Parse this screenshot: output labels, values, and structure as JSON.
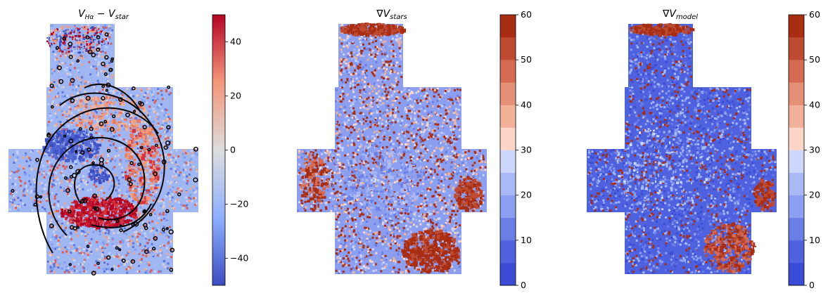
{
  "chart_data": [
    {
      "type": "heatmap",
      "title": "V_Hα − V_star",
      "title_parts": {
        "base": "V",
        "base_sub": "Hα",
        "op": " − ",
        "base2": "V",
        "base2_sub": "star"
      },
      "colormap": "coolwarm",
      "colorbar": {
        "range": [
          -50,
          50
        ],
        "ticks": [
          -40,
          -20,
          0,
          20,
          40
        ],
        "tick_labels": [
          "−40",
          "−20",
          "0",
          "20",
          "40"
        ],
        "discrete": false
      },
      "overlay": "black contour lines",
      "legend": "none",
      "grid": false
    },
    {
      "type": "heatmap",
      "title": "∇V_stars",
      "title_parts": {
        "base": "∇V",
        "base_sub": "stars"
      },
      "colormap": "coolwarm (discrete)",
      "colorbar": {
        "range": [
          0,
          60
        ],
        "ticks": [
          0,
          10,
          20,
          30,
          40,
          50,
          60
        ],
        "tick_labels": [
          "0",
          "10",
          "20",
          "30",
          "40",
          "50",
          "60"
        ],
        "discrete": true,
        "levels": 12
      },
      "legend": "none",
      "grid": false
    },
    {
      "type": "heatmap",
      "title": "∇V_model",
      "title_parts": {
        "base": "∇V",
        "base_sub": "model"
      },
      "colormap": "coolwarm (discrete)",
      "colorbar": {
        "range": [
          0,
          60
        ],
        "ticks": [
          0,
          10,
          20,
          30,
          40,
          50,
          60
        ],
        "tick_labels": [
          "0",
          "10",
          "20",
          "30",
          "40",
          "50",
          "60"
        ],
        "discrete": true,
        "levels": 12
      },
      "legend": "none",
      "grid": false
    }
  ],
  "colors": {
    "cool_end": "#3b4cc0",
    "mid": "#dddddd",
    "warm_end": "#b40426",
    "discrete_levels": [
      "#3a4cd3",
      "#4e62e0",
      "#6a7fe6",
      "#8b9ef0",
      "#aab9f5",
      "#cdd7fb",
      "#fdd6c7",
      "#f2b29a",
      "#e49077",
      "#d46b52",
      "#be4a32",
      "#a82d12"
    ],
    "contour": "#000000"
  }
}
